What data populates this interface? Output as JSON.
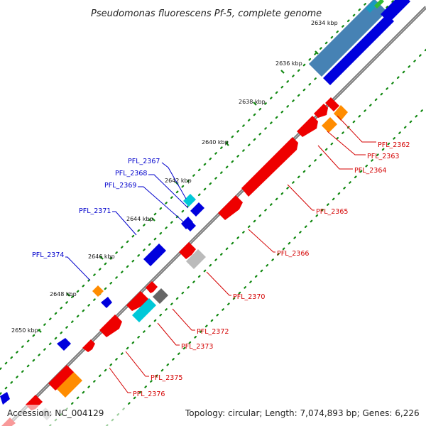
{
  "title": "Pseudomonas fluorescens Pf-5, complete genome",
  "footer": {
    "accession": "Accession: NC_004129",
    "summary": "Topology: circular; Length: 7,074,893 bp; Genes: 6,226"
  },
  "ticks": [
    "2634 kbp",
    "2636 kbp",
    "2638 kbp",
    "2640 kbp",
    "2642 kbp",
    "2644 kbp",
    "2646 kbp",
    "2648 kbp",
    "2650 kbp"
  ],
  "labels_right": [
    "PFL_2362",
    "PFL_2363",
    "PFL_2364",
    "PFL_2365",
    "PFL_2366",
    "PFL_2370",
    "PFL_2372",
    "PFL_2373",
    "PFL_2375",
    "PFL_2376"
  ],
  "labels_left": [
    "PFL_2367",
    "PFL_2368",
    "PFL_2369",
    "PFL_2371",
    "PFL_2374"
  ],
  "colors": {
    "forward_cds": "#ee0000",
    "reverse_cds": "#0000dd",
    "rna": "#ff8c00",
    "highlight": "#00c8d8",
    "other": "#bbbbbb",
    "dark": "#666666",
    "steel": "#4682b4",
    "backbone": "#777777",
    "dots": "#118811"
  }
}
